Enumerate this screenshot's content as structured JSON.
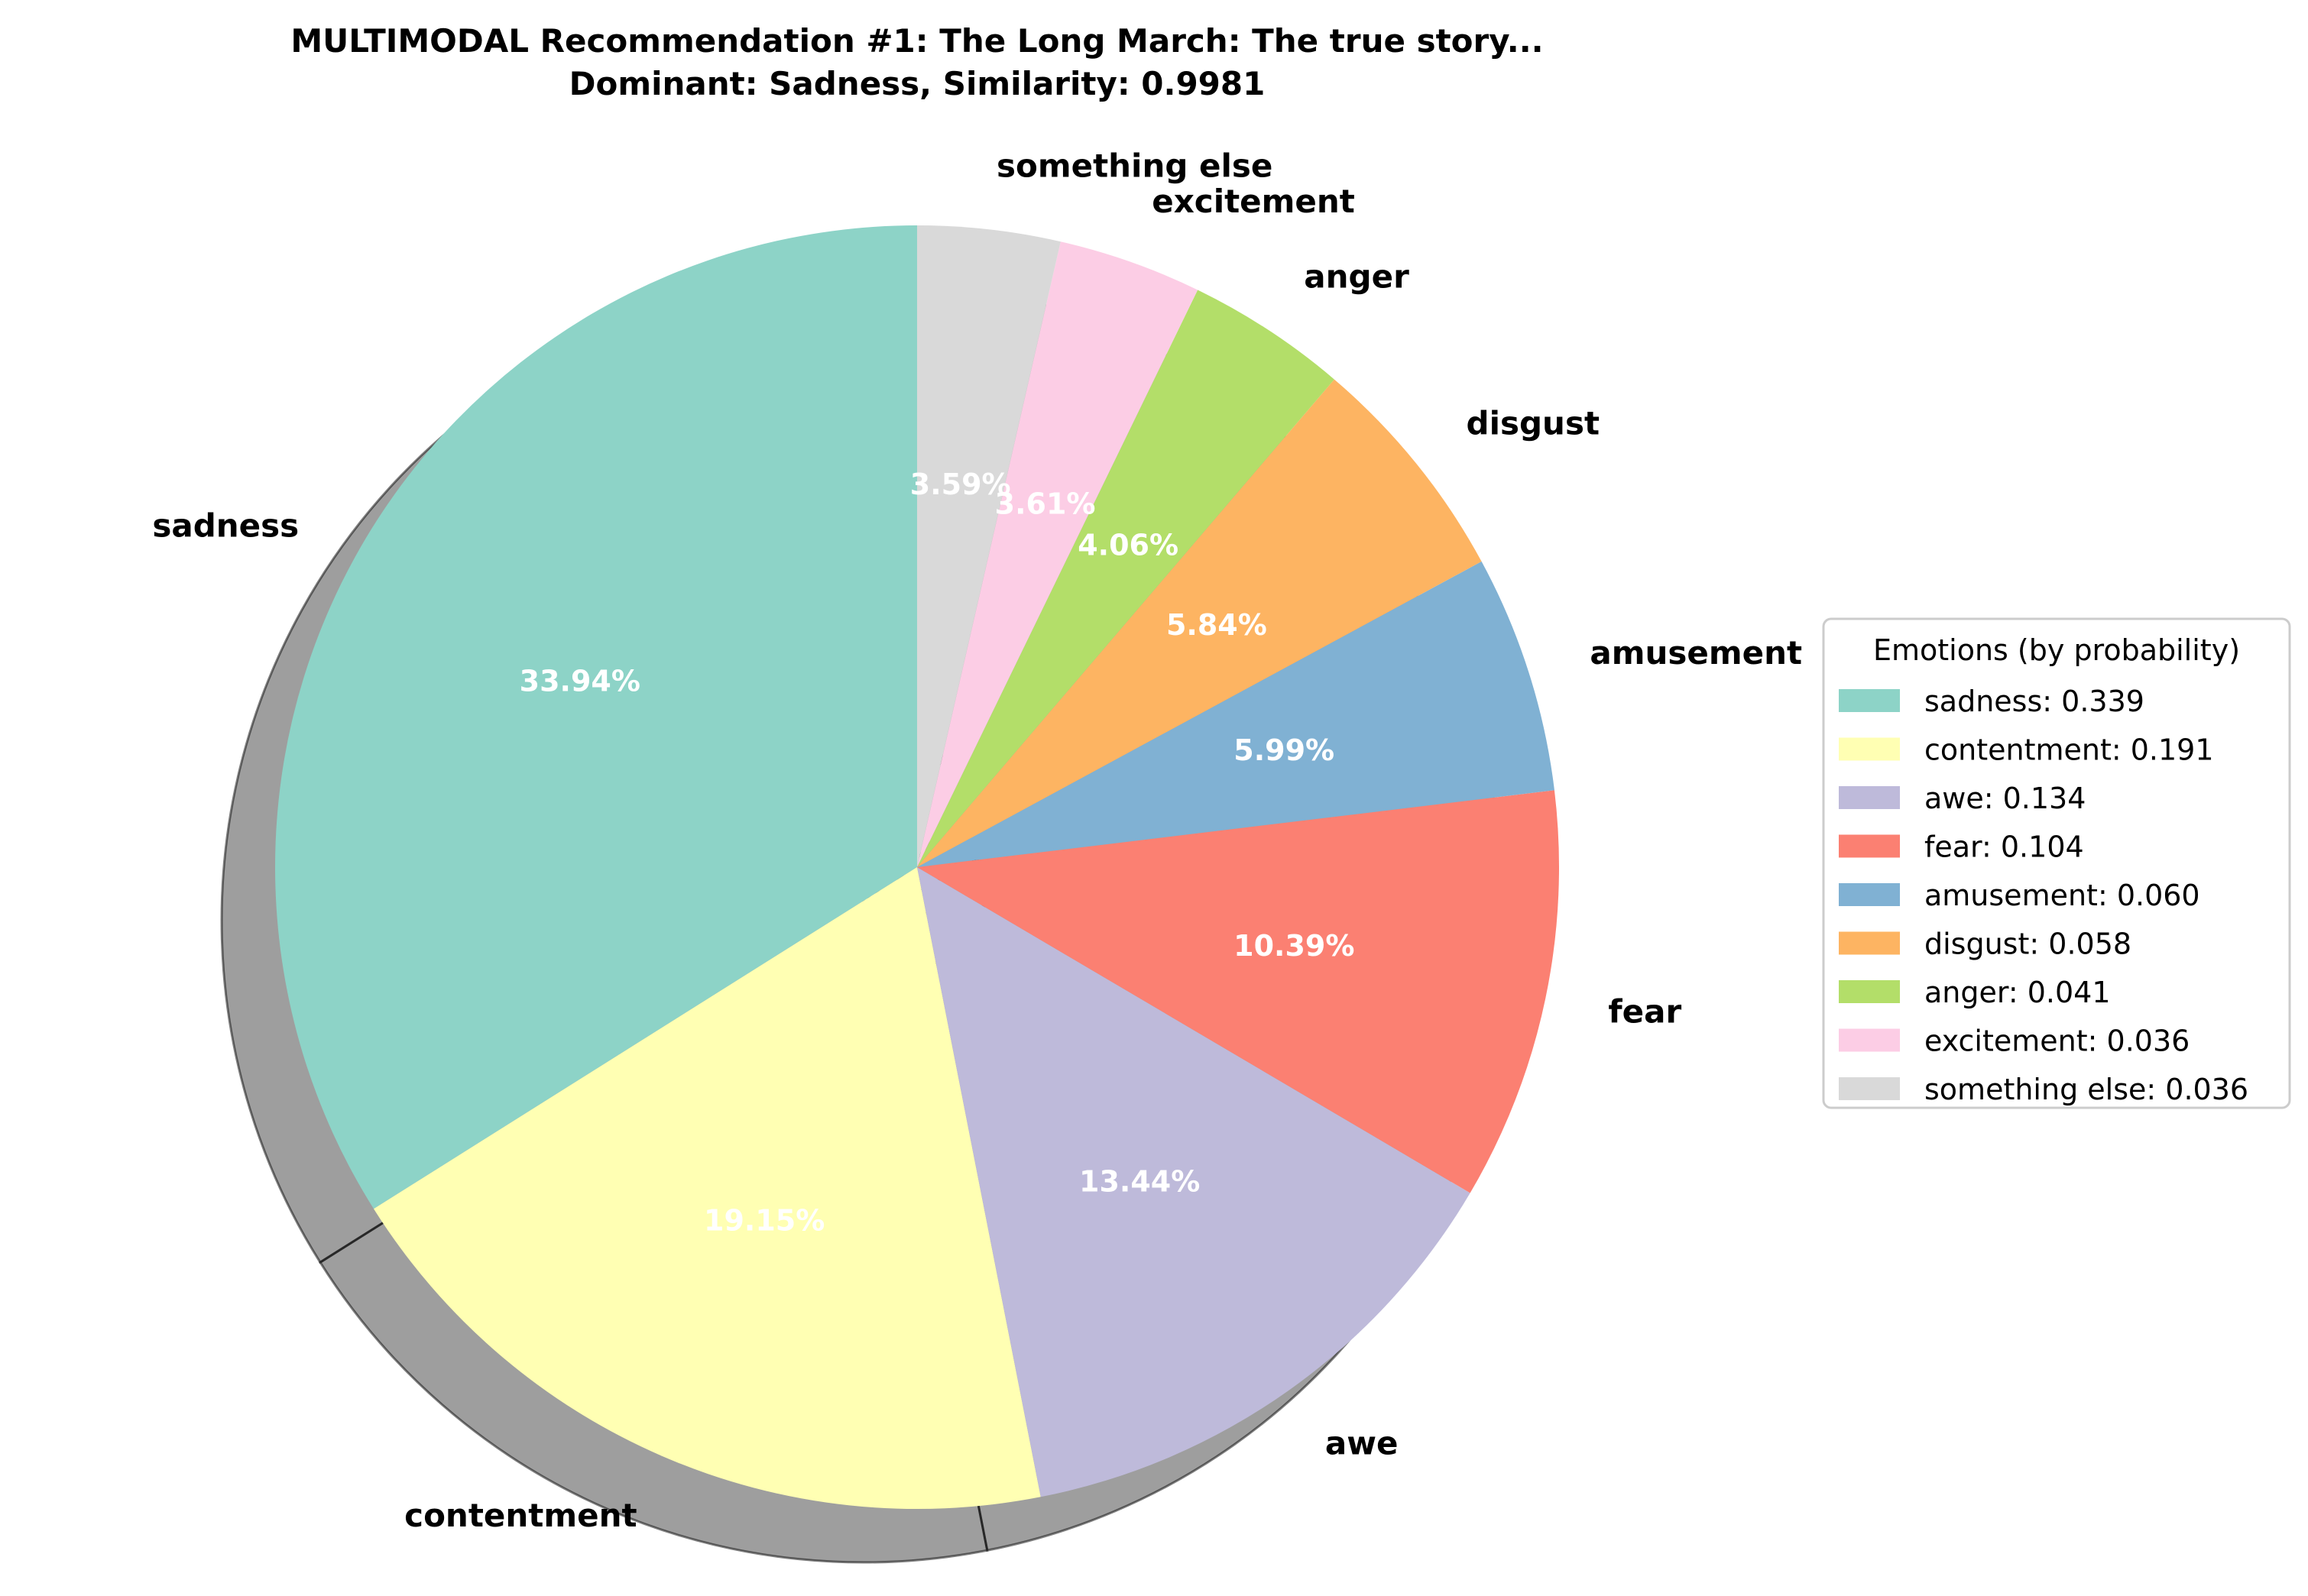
{
  "chart_data": {
    "type": "pie",
    "title": "MULTIMODAL Recommendation #1: The Long March: The true story...",
    "subtitle": "Dominant: Sadness, Similarity: 0.9981",
    "start_angle": 90,
    "direction": "counterclockwise",
    "shadow": true,
    "slices": [
      {
        "label": "sadness",
        "value": 33.94,
        "pct_label": "33.94%",
        "legend": "sadness: 0.339",
        "color": "#8dd3c7"
      },
      {
        "label": "contentment",
        "value": 19.15,
        "pct_label": "19.15%",
        "legend": "contentment: 0.191",
        "color": "#ffffb3"
      },
      {
        "label": "awe",
        "value": 13.44,
        "pct_label": "13.44%",
        "legend": "awe: 0.134",
        "color": "#bebada"
      },
      {
        "label": "fear",
        "value": 10.39,
        "pct_label": "10.39%",
        "legend": "fear: 0.104",
        "color": "#fb8072"
      },
      {
        "label": "amusement",
        "value": 5.99,
        "pct_label": "5.99%",
        "legend": "amusement: 0.060",
        "color": "#80b1d3"
      },
      {
        "label": "disgust",
        "value": 5.84,
        "pct_label": "5.84%",
        "legend": "disgust: 0.058",
        "color": "#fdb462"
      },
      {
        "label": "anger",
        "value": 4.06,
        "pct_label": "4.06%",
        "legend": "anger: 0.041",
        "color": "#b3de69"
      },
      {
        "label": "excitement",
        "value": 3.61,
        "pct_label": "3.61%",
        "legend": "excitement: 0.036",
        "color": "#fccde5"
      },
      {
        "label": "something else",
        "value": 3.59,
        "pct_label": "3.59%",
        "legend": "something else: 0.036",
        "color": "#d9d9d9"
      }
    ],
    "legend": {
      "title": "Emotions (by probability)",
      "placement": "right"
    }
  }
}
